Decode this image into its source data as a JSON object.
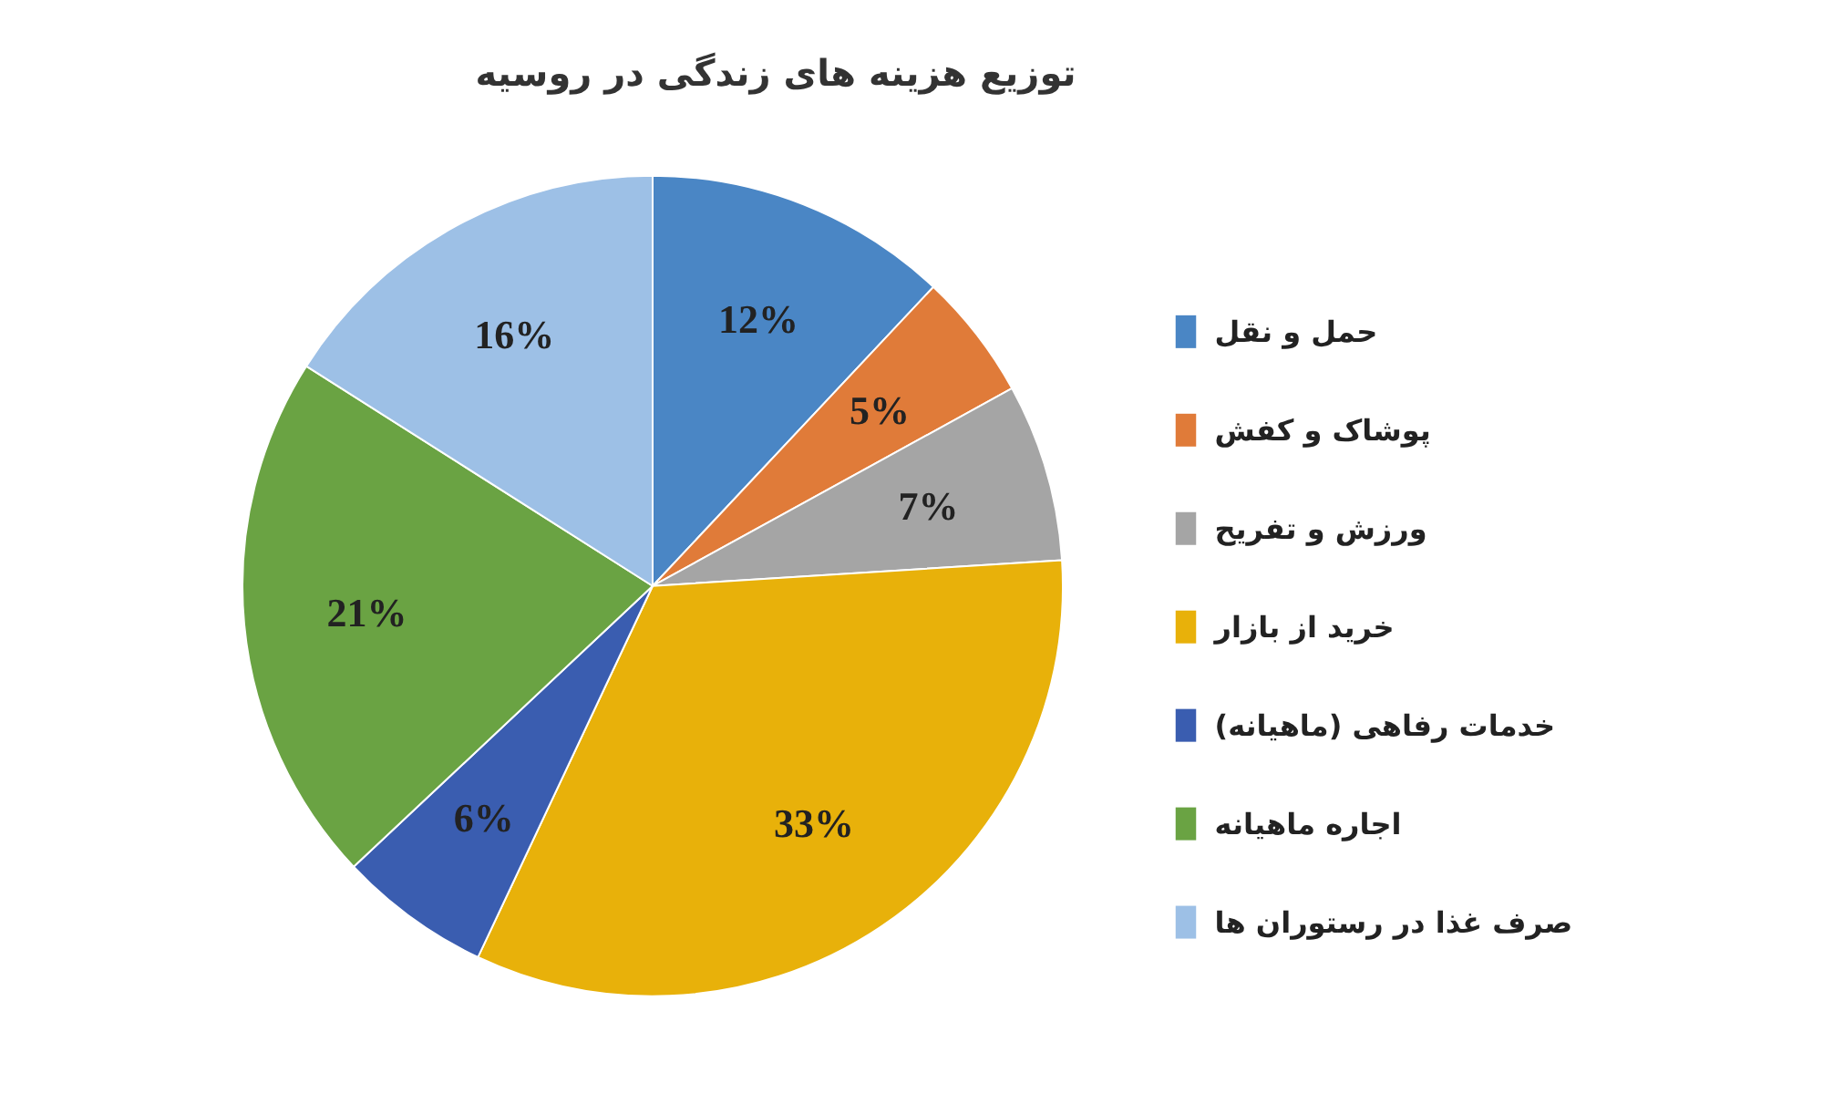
{
  "chart_data": {
    "type": "pie",
    "title": "توزیع هزینه های زندگی در روسیه",
    "categories": [
      "حمل و نقل",
      "پوشاک و کفش",
      "ورزش و تفریح",
      "خرید از بازار",
      "خدمات رفاهی (ماهیانه)",
      "اجاره ماهیانه",
      "صرف غذا در رستوران ها"
    ],
    "values": [
      12,
      5,
      7,
      33,
      6,
      21,
      16
    ],
    "value_labels": [
      "12%",
      "5%",
      "7%",
      "33%",
      "6%",
      "21%",
      "16%"
    ],
    "colors": [
      "#4a86c5",
      "#e07b39",
      "#a5a5a5",
      "#e8b10a",
      "#3a5db0",
      "#6aa343",
      "#9dc0e6"
    ],
    "legend": "right"
  }
}
